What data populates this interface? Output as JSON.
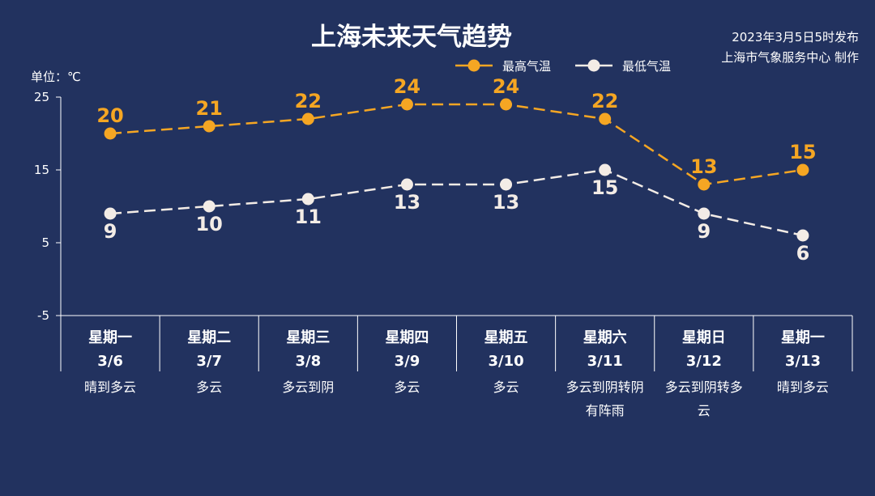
{
  "header": {
    "title": "上海未来天气趋势",
    "publish_time": "2023年3月5日5时发布",
    "publisher": "上海市气象服务中心 制作",
    "unit": "单位：℃"
  },
  "colors": {
    "background": "#22325f",
    "high": "#f5a623",
    "low": "#f3ece6",
    "axis": "#ffffff"
  },
  "chart_data": {
    "type": "line",
    "ylim": [
      -5,
      25
    ],
    "yticks": [
      25,
      15,
      5,
      -5
    ],
    "grid": false,
    "legend": "top",
    "categories": [
      {
        "weekday": "星期一",
        "date": "3/6",
        "weather": [
          "晴到多云"
        ]
      },
      {
        "weekday": "星期二",
        "date": "3/7",
        "weather": [
          "多云"
        ]
      },
      {
        "weekday": "星期三",
        "date": "3/8",
        "weather": [
          "多云到阴"
        ]
      },
      {
        "weekday": "星期四",
        "date": "3/9",
        "weather": [
          "多云"
        ]
      },
      {
        "weekday": "星期五",
        "date": "3/10",
        "weather": [
          "多云"
        ]
      },
      {
        "weekday": "星期六",
        "date": "3/11",
        "weather": [
          "多云到阴转阴",
          "有阵雨"
        ]
      },
      {
        "weekday": "星期日",
        "date": "3/12",
        "weather": [
          "多云到阴转多",
          "云"
        ]
      },
      {
        "weekday": "星期一",
        "date": "3/13",
        "weather": [
          "晴到多云"
        ]
      }
    ],
    "series": [
      {
        "name": "最高气温",
        "color": "#f5a623",
        "values": [
          20,
          21,
          22,
          24,
          24,
          22,
          13,
          15
        ]
      },
      {
        "name": "最低气温",
        "color": "#f3ece6",
        "values": [
          9,
          10,
          11,
          13,
          13,
          15,
          9,
          6
        ]
      }
    ]
  }
}
